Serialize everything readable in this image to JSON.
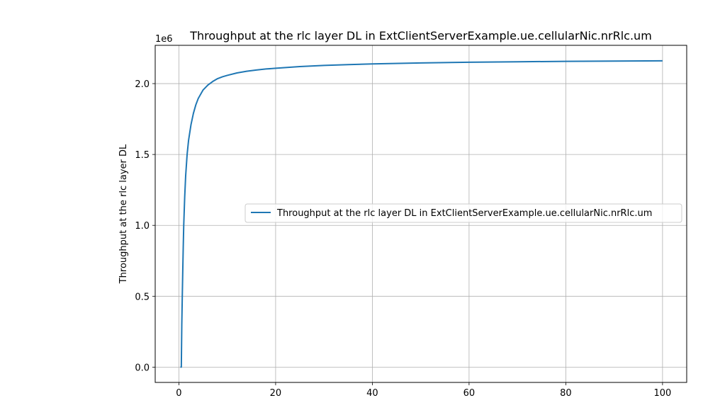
{
  "chart_data": {
    "type": "line",
    "title": "Throughput at the rlc layer DL in ExtClientServerExample.ue.cellularNic.nrRlc.um",
    "xlabel": "",
    "ylabel": "Throughput at the rlc layer DL",
    "y_offset_label": "1e6",
    "xlim": [
      -4.9,
      105
    ],
    "ylim": [
      -0.108,
      2.27
    ],
    "y_scale_multiplier": 1000000,
    "xticks": [
      0,
      20,
      40,
      60,
      80,
      100
    ],
    "xtick_labels": [
      "0",
      "20",
      "40",
      "60",
      "80",
      "100"
    ],
    "yticks": [
      0.0,
      0.5,
      1.0,
      1.5,
      2.0
    ],
    "ytick_labels": [
      "0.0",
      "0.5",
      "1.0",
      "1.5",
      "2.0"
    ],
    "grid": true,
    "legend_position": "center-right",
    "colors": {
      "series": "#1f77b4",
      "grid": "#b0b0b0",
      "axes": "#000000"
    },
    "series": [
      {
        "name": "Throughput at the rlc layer DL in ExtClientServerExample.ue.cellularNic.nrRlc.um",
        "x": [
          0.3,
          0.5,
          0.6,
          0.7,
          0.8,
          0.9,
          1.0,
          1.2,
          1.4,
          1.7,
          2.0,
          2.5,
          3.0,
          3.5,
          4.0,
          5.0,
          6.0,
          7.0,
          8.0,
          9.0,
          10.0,
          12.0,
          14.0,
          16.0,
          18.0,
          20.0,
          25.0,
          30.0,
          35.0,
          40.0,
          50.0,
          60.0,
          70.0,
          80.0,
          90.0,
          100.0
        ],
        "y": [
          0.0,
          0.0,
          0.3,
          0.5,
          0.68,
          0.85,
          1.0,
          1.2,
          1.35,
          1.5,
          1.6,
          1.71,
          1.79,
          1.85,
          1.895,
          1.955,
          1.99,
          2.015,
          2.035,
          2.048,
          2.058,
          2.075,
          2.087,
          2.096,
          2.103,
          2.108,
          2.12,
          2.128,
          2.134,
          2.139,
          2.146,
          2.151,
          2.154,
          2.157,
          2.159,
          2.161
        ]
      }
    ]
  }
}
